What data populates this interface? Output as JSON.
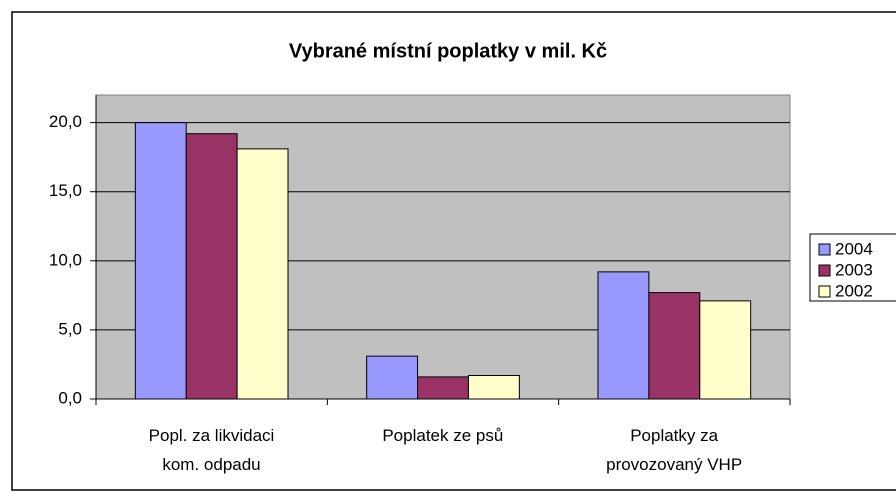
{
  "chart_data": {
    "type": "bar",
    "title": "Vybrané místní poplatky v mil. Kč",
    "categories": [
      "Popl. za likvidaci\nkom. odpadu",
      "Poplatek ze psů",
      "Poplatky  za\nprovozovaný VHP"
    ],
    "series": [
      {
        "name": "2004",
        "color": "#9999ff",
        "values": [
          20.0,
          3.1,
          9.2
        ]
      },
      {
        "name": "2003",
        "color": "#993366",
        "values": [
          19.2,
          1.6,
          7.7
        ]
      },
      {
        "name": "2002",
        "color": "#ffffcc",
        "values": [
          18.1,
          1.7,
          7.1
        ]
      }
    ],
    "ylim": [
      0,
      22
    ],
    "yticks": [
      {
        "value": 0,
        "label": "0,0"
      },
      {
        "value": 5,
        "label": "5,0"
      },
      {
        "value": 10,
        "label": "10,0"
      },
      {
        "value": 15,
        "label": "15,0"
      },
      {
        "value": 20,
        "label": "20,0"
      }
    ],
    "grid": true,
    "legend": "right"
  }
}
